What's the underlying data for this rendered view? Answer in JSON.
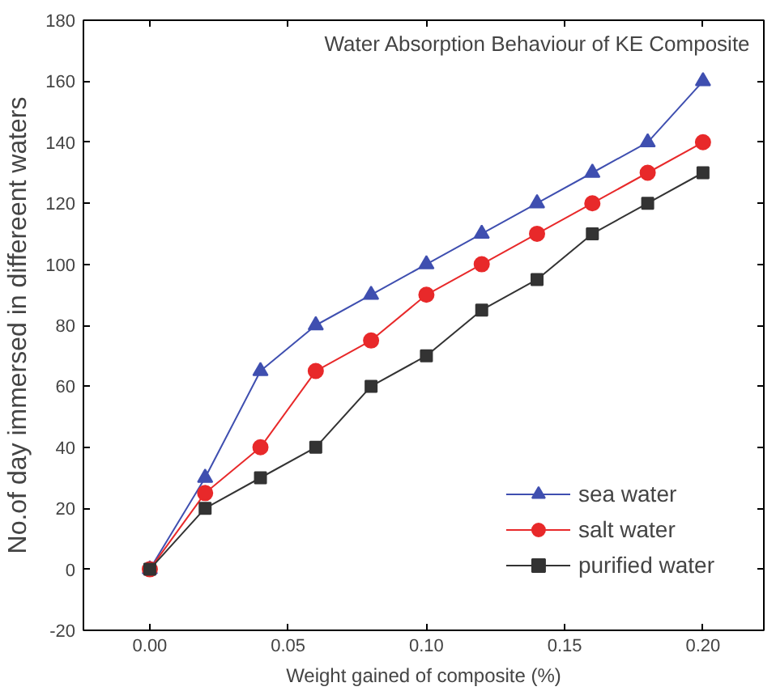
{
  "chart_data": {
    "type": "line",
    "title": "Water Absorption Behaviour of KE Composite",
    "xlabel": "Weight gained of composite (%)",
    "ylabel": "No.of day immersed in differeent waters",
    "x": [
      0.0,
      0.02,
      0.04,
      0.06,
      0.08,
      0.1,
      0.12,
      0.14,
      0.16,
      0.18,
      0.2
    ],
    "series": [
      {
        "name": "sea water",
        "color": "#3f4fb0",
        "marker": "triangle",
        "values": [
          0,
          30,
          65,
          80,
          90,
          100,
          110,
          120,
          130,
          140,
          160
        ]
      },
      {
        "name": "salt water",
        "color": "#e8292a",
        "marker": "circle",
        "values": [
          0,
          25,
          40,
          65,
          75,
          90,
          100,
          110,
          120,
          130,
          140
        ]
      },
      {
        "name": "purified water",
        "color": "#333333",
        "marker": "square",
        "values": [
          0,
          20,
          30,
          40,
          60,
          70,
          85,
          95,
          110,
          120,
          130
        ]
      }
    ],
    "xlim": [
      -0.024,
      0.222
    ],
    "ylim": [
      -20,
      180
    ],
    "xticks": [
      {
        "value": 0.0,
        "label": "0.00"
      },
      {
        "value": 0.05,
        "label": "0.05"
      },
      {
        "value": 0.1,
        "label": "0.10"
      },
      {
        "value": 0.15,
        "label": "0.15"
      },
      {
        "value": 0.2,
        "label": "0.20"
      }
    ],
    "yticks": [
      -20,
      0,
      20,
      40,
      60,
      80,
      100,
      120,
      140,
      160,
      180
    ],
    "grid": false,
    "legend": "bottom right",
    "line_style": "solid"
  }
}
